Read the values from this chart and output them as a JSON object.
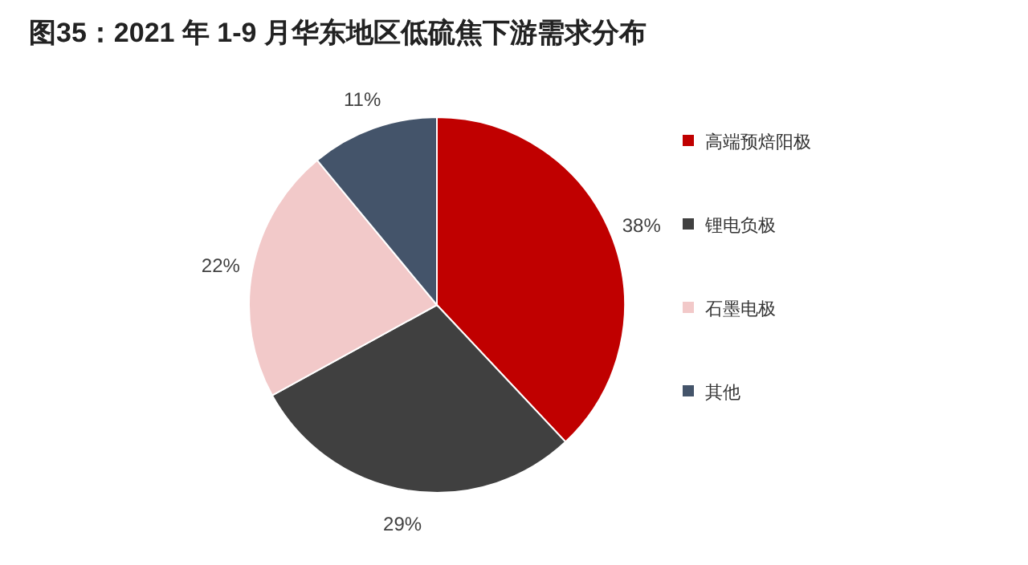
{
  "chart_data": {
    "type": "pie",
    "title": "图35：2021 年 1-9 月华东地区低硫焦下游需求分布",
    "categories": [
      "高端预焙阳极",
      "锂电负极",
      "石墨电极",
      "其他"
    ],
    "values": [
      38,
      29,
      22,
      11
    ],
    "colors": [
      "#c00000",
      "#404040",
      "#f2c9c9",
      "#44546a"
    ],
    "value_labels": [
      "38%",
      "29%",
      "22%",
      "11%"
    ],
    "legend": "right"
  }
}
